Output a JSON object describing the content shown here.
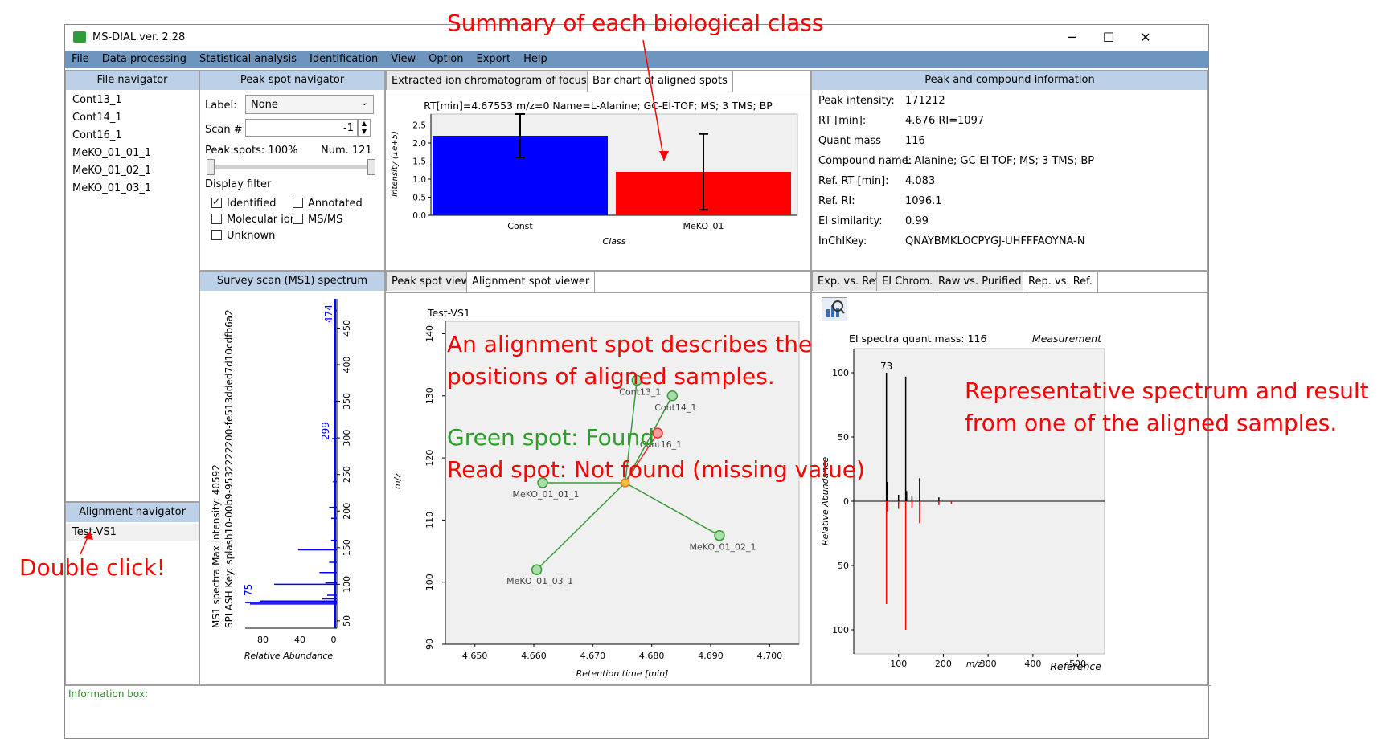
{
  "window": {
    "title": "MS-DIAL ver. 2.28",
    "minimize": "─",
    "maximize": "☐",
    "close": "✕"
  },
  "menu": [
    "File",
    "Data processing",
    "Statistical analysis",
    "Identification",
    "View",
    "Option",
    "Export",
    "Help"
  ],
  "file_navigator": {
    "title": "File navigator",
    "files": [
      "Cont13_1",
      "Cont14_1",
      "Cont16_1",
      "MeKO_01_01_1",
      "MeKO_01_02_1",
      "MeKO_01_03_1"
    ]
  },
  "alignment_navigator": {
    "title": "Alignment navigator",
    "items": [
      "Test-VS1"
    ]
  },
  "peak_spot_navigator": {
    "title": "Peak spot navigator",
    "label_text": "Label:",
    "label_value": "None",
    "scan_text": "Scan #",
    "scan_value": "-1",
    "peak_spots_text": "Peak spots: 100%",
    "num_text": "Num. 121",
    "display_filter": "Display filter",
    "filters": [
      {
        "label": "Identified",
        "checked": true
      },
      {
        "label": "Annotated",
        "checked": false
      },
      {
        "label": "Molecular ion",
        "checked": false
      },
      {
        "label": "MS/MS",
        "checked": false
      },
      {
        "label": "Unknown",
        "checked": false
      }
    ]
  },
  "ms1_panel": {
    "title": "Survey scan (MS1) spectrum",
    "line1": "MS1 spectra Max intensity: 40592",
    "line2": "SPLASH Key: splash10-00b9-9532222200-fe513dded7d10cdfb6a2",
    "xlabel": "Relative Abundance",
    "x_ticks": [
      "80",
      "40",
      "0"
    ],
    "y_ticks": [
      "50",
      "100",
      "150",
      "200",
      "250",
      "300",
      "350",
      "400",
      "450"
    ],
    "peak_labels": [
      "474",
      "299",
      "75"
    ]
  },
  "center_top": {
    "tabs": [
      "Extracted ion chromatogram of focused spot",
      "Bar chart of aligned spots"
    ],
    "active_tab": 1
  },
  "center_bottom": {
    "tabs": [
      "Peak spot viewer",
      "Alignment spot viewer"
    ],
    "active_tab": 1,
    "plot_title": "Test-VS1",
    "xlabel": "Retention time [min]",
    "ylabel": "m/z"
  },
  "compound_info": {
    "title": "Peak and compound information",
    "rows": [
      {
        "k": "Peak intensity:",
        "v": "171212"
      },
      {
        "k": "RT [min]:",
        "v": "4.676  RI=1097"
      },
      {
        "k": "Quant mass",
        "v": "116"
      },
      {
        "k": "Compound name:",
        "v": "L-Alanine; GC-EI-TOF; MS; 3 TMS; BP"
      },
      {
        "k": "Ref. RT [min]:",
        "v": "4.083"
      },
      {
        "k": "Ref. RI:",
        "v": "1096.1"
      },
      {
        "k": "EI similarity:",
        "v": "0.99"
      },
      {
        "k": "InChIKey:",
        "v": "QNAYBMKLOCPYGJ-UHFFFAOYNA-N"
      }
    ]
  },
  "right_bottom": {
    "tabs": [
      "Exp. vs. Ref.",
      "EI Chrom.",
      "Raw vs. Purified",
      "Rep. vs. Ref."
    ],
    "active_tab": 3,
    "spec_title": "EI spectra quant mass: 116",
    "measurement": "Measurement",
    "reference": "Reference",
    "xlabel": "m/z",
    "ylabel": "Relative Abundance",
    "peak_label": "73"
  },
  "info_box": "Information box:",
  "annotations": {
    "summary": "Summary of each biological class",
    "double_click": "Double click!",
    "alignment_line1": "An alignment spot describes the",
    "alignment_line2": "positions of aligned samples.",
    "green": "Green spot: Found",
    "red": "Read spot: Not found (missing value)",
    "rep_line1": "Representative spectrum and result",
    "rep_line2": "from one of the aligned samples."
  },
  "chart_data": [
    {
      "type": "bar",
      "title": "RT[min]=4.67553 m/z=0 Name=L-Alanine; GC-EI-TOF; MS; 3 TMS; BP",
      "xlabel": "Class",
      "ylabel": "Intensity (1e+5)",
      "categories": [
        "Const",
        "MeKO_01"
      ],
      "values": [
        2.2,
        1.2
      ],
      "error": [
        0.6,
        1.05
      ],
      "colors": [
        "#0000ff",
        "#ff0000"
      ],
      "ylim": [
        0,
        2.8
      ],
      "y_ticks": [
        0.0,
        0.5,
        1.0,
        1.5,
        2.0,
        2.5
      ]
    },
    {
      "type": "scatter",
      "title": "Test-VS1",
      "xlabel": "Retention time [min]",
      "ylabel": "m/z",
      "xlim": [
        4.645,
        4.705
      ],
      "ylim": [
        90,
        142
      ],
      "x_ticks": [
        4.65,
        4.66,
        4.67,
        4.68,
        4.69,
        4.7
      ],
      "y_ticks": [
        90,
        100,
        110,
        120,
        130,
        140
      ],
      "center": {
        "x": 4.6755,
        "y": 116
      },
      "points": [
        {
          "name": "Cont13_1",
          "x": 4.6775,
          "y": 132.5,
          "found": true
        },
        {
          "name": "Cont14_1",
          "x": 4.6835,
          "y": 130.0,
          "found": true
        },
        {
          "name": "Cont16_1",
          "x": 4.681,
          "y": 124.0,
          "found": false
        },
        {
          "name": "MeKO_01_01_1",
          "x": 4.6615,
          "y": 116.0,
          "found": true
        },
        {
          "name": "MeKO_01_02_1",
          "x": 4.6915,
          "y": 107.5,
          "found": true
        },
        {
          "name": "MeKO_01_03_1",
          "x": 4.6605,
          "y": 102.0,
          "found": true
        }
      ]
    },
    {
      "type": "bar",
      "title": "EI spectra quant mass: 116",
      "xlabel": "m/z",
      "ylabel": "Relative Abundance",
      "xlim": [
        0,
        560
      ],
      "x_ticks": [
        100,
        200,
        300,
        400,
        500
      ],
      "y_ticks": [
        100,
        50,
        0,
        50,
        100
      ],
      "measurement": [
        {
          "mz": 73,
          "i": 100
        },
        {
          "mz": 75,
          "i": 15
        },
        {
          "mz": 100,
          "i": 5
        },
        {
          "mz": 116,
          "i": 97
        },
        {
          "mz": 118,
          "i": 8
        },
        {
          "mz": 130,
          "i": 4
        },
        {
          "mz": 147,
          "i": 18
        },
        {
          "mz": 190,
          "i": 3
        }
      ],
      "reference": [
        {
          "mz": 73,
          "i": 80
        },
        {
          "mz": 75,
          "i": 8
        },
        {
          "mz": 100,
          "i": 6
        },
        {
          "mz": 116,
          "i": 100
        },
        {
          "mz": 130,
          "i": 5
        },
        {
          "mz": 147,
          "i": 17
        },
        {
          "mz": 190,
          "i": 3
        },
        {
          "mz": 218,
          "i": 2
        }
      ]
    }
  ]
}
